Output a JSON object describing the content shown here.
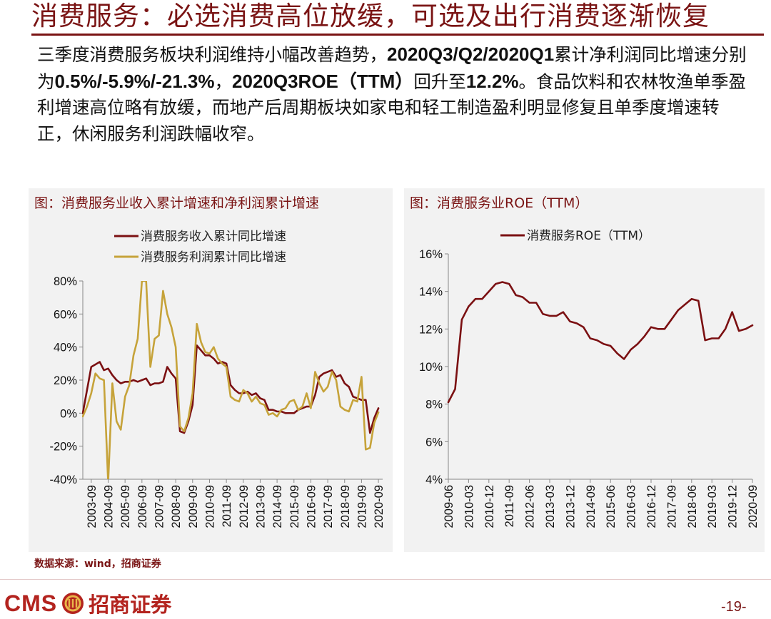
{
  "slide": {
    "title": "消费服务：必选消费高位放缓，可选及出行消费逐渐恢复",
    "body": [
      {
        "t": "三季度消费服务板块利润维持小幅改善趋势，",
        "b": false
      },
      {
        "t": "2020Q3/Q2/2020Q1",
        "b": true
      },
      {
        "t": "累计净利润同比增速分别为",
        "b": false
      },
      {
        "t": "0.5%/-5.9%/-21.3%",
        "b": true
      },
      {
        "t": "，",
        "b": false
      },
      {
        "t": "2020Q3ROE（TTM）",
        "b": true
      },
      {
        "t": "回升至",
        "b": false
      },
      {
        "t": "12.2%",
        "b": true
      },
      {
        "t": "。食品饮料和农林牧渔单季盈利增速高位略有放缓，而地产后周期板块如家电和轻工制造盈利明显修复且单季度增速转正，休闲服务利润跌幅收窄。",
        "b": false
      }
    ],
    "source": "数据来源：wind，招商证券",
    "logo_text": "CMS",
    "logo_cn": "招商证券",
    "page_number": "-19-"
  },
  "colors": {
    "brand": "#7a1414",
    "revenue": "#7b1012",
    "profit": "#c6a33a",
    "roe": "#7b1012",
    "panel_bg": "#f2f2f2"
  },
  "chart_data": [
    {
      "type": "line",
      "title": "图：消费服务业收入累计增速和净利润累计增速",
      "ylim": [
        -40,
        80
      ],
      "yticks": [
        "80%",
        "60%",
        "40%",
        "20%",
        "0%",
        "-20%",
        "-40%"
      ],
      "ytick_values": [
        80,
        60,
        40,
        20,
        0,
        -20,
        -40
      ],
      "xticks": [
        "2003-09",
        "2004-09",
        "2005-09",
        "2006-09",
        "2007-09",
        "2008-09",
        "2009-09",
        "2010-09",
        "2011-09",
        "2012-09",
        "2013-09",
        "2014-09",
        "2015-09",
        "2016-09",
        "2017-09",
        "2018-09",
        "2019-09",
        "2020-09"
      ],
      "grid": false,
      "legend_position": "top",
      "series": [
        {
          "name": "消费服务收入累计同比增速",
          "points": [
            [
              "2003-03",
              0
            ],
            [
              "2003-09",
              28
            ],
            [
              "2004-03",
              31
            ],
            [
              "2004-06",
              26
            ],
            [
              "2004-09",
              27
            ],
            [
              "2004-12",
              23
            ],
            [
              "2005-03",
              20
            ],
            [
              "2005-06",
              18
            ],
            [
              "2005-09",
              19
            ],
            [
              "2005-12",
              19
            ],
            [
              "2006-03",
              20
            ],
            [
              "2006-06",
              19
            ],
            [
              "2006-09",
              20
            ],
            [
              "2006-12",
              21
            ],
            [
              "2007-03",
              17
            ],
            [
              "2007-06",
              18
            ],
            [
              "2007-09",
              18
            ],
            [
              "2007-12",
              19
            ],
            [
              "2008-03",
              28
            ],
            [
              "2008-06",
              24
            ],
            [
              "2008-09",
              21
            ],
            [
              "2008-12",
              -11
            ],
            [
              "2009-03",
              -12
            ],
            [
              "2009-06",
              -5
            ],
            [
              "2009-09",
              5
            ],
            [
              "2009-12",
              41
            ],
            [
              "2010-03",
              38
            ],
            [
              "2010-06",
              35
            ],
            [
              "2010-09",
              35
            ],
            [
              "2010-12",
              33
            ],
            [
              "2011-03",
              30
            ],
            [
              "2011-06",
              31
            ],
            [
              "2011-09",
              30
            ],
            [
              "2011-12",
              17
            ],
            [
              "2012-03",
              14
            ],
            [
              "2012-06",
              12
            ],
            [
              "2012-09",
              12
            ],
            [
              "2012-12",
              13
            ],
            [
              "2013-03",
              11
            ],
            [
              "2013-06",
              12
            ],
            [
              "2013-09",
              9
            ],
            [
              "2013-12",
              8
            ],
            [
              "2014-03",
              2
            ],
            [
              "2014-06",
              2
            ],
            [
              "2014-09",
              1
            ],
            [
              "2014-12",
              1
            ],
            [
              "2015-03",
              0
            ],
            [
              "2015-06",
              0
            ],
            [
              "2015-09",
              0
            ],
            [
              "2015-12",
              2
            ],
            [
              "2016-03",
              3
            ],
            [
              "2016-06",
              4
            ],
            [
              "2016-09",
              4
            ],
            [
              "2016-12",
              11
            ],
            [
              "2017-03",
              22
            ],
            [
              "2017-06",
              24
            ],
            [
              "2017-09",
              25
            ],
            [
              "2017-12",
              26
            ],
            [
              "2018-03",
              22
            ],
            [
              "2018-06",
              23
            ],
            [
              "2018-09",
              18
            ],
            [
              "2018-12",
              16
            ],
            [
              "2019-03",
              10
            ],
            [
              "2019-06",
              9
            ],
            [
              "2019-09",
              8
            ],
            [
              "2019-12",
              8
            ],
            [
              "2020-03",
              -12
            ],
            [
              "2020-06",
              -3
            ],
            [
              "2020-09",
              3
            ]
          ]
        },
        {
          "name": "消费服务利润累计同比增速",
          "points": [
            [
              "2003-03",
              -2
            ],
            [
              "2003-06",
              4
            ],
            [
              "2003-09",
              12
            ],
            [
              "2003-12",
              24
            ],
            [
              "2004-03",
              21
            ],
            [
              "2004-06",
              20
            ],
            [
              "2004-09",
              -42
            ],
            [
              "2004-12",
              18
            ],
            [
              "2005-03",
              -5
            ],
            [
              "2005-06",
              -10
            ],
            [
              "2005-09",
              10
            ],
            [
              "2005-12",
              17
            ],
            [
              "2006-03",
              35
            ],
            [
              "2006-06",
              45
            ],
            [
              "2006-09",
              80
            ],
            [
              "2006-12",
              80
            ],
            [
              "2007-03",
              28
            ],
            [
              "2007-06",
              45
            ],
            [
              "2007-09",
              47
            ],
            [
              "2007-12",
              74
            ],
            [
              "2008-03",
              60
            ],
            [
              "2008-06",
              52
            ],
            [
              "2008-09",
              40
            ],
            [
              "2008-12",
              -8
            ],
            [
              "2009-03",
              -11
            ],
            [
              "2009-06",
              -3
            ],
            [
              "2009-09",
              12
            ],
            [
              "2009-12",
              54
            ],
            [
              "2010-03",
              43
            ],
            [
              "2010-06",
              37
            ],
            [
              "2010-09",
              36
            ],
            [
              "2010-12",
              40
            ],
            [
              "2011-03",
              33
            ],
            [
              "2011-06",
              30
            ],
            [
              "2011-09",
              28
            ],
            [
              "2011-12",
              10
            ],
            [
              "2012-03",
              8
            ],
            [
              "2012-06",
              7
            ],
            [
              "2012-09",
              14
            ],
            [
              "2012-12",
              12
            ],
            [
              "2013-03",
              7
            ],
            [
              "2013-06",
              10
            ],
            [
              "2013-09",
              6
            ],
            [
              "2013-12",
              5
            ],
            [
              "2014-03",
              -1
            ],
            [
              "2014-06",
              0
            ],
            [
              "2014-09",
              -2
            ],
            [
              "2014-12",
              2
            ],
            [
              "2015-03",
              3
            ],
            [
              "2015-06",
              7
            ],
            [
              "2015-09",
              8
            ],
            [
              "2015-12",
              2
            ],
            [
              "2016-03",
              4
            ],
            [
              "2016-06",
              12
            ],
            [
              "2016-09",
              3
            ],
            [
              "2016-12",
              25
            ],
            [
              "2017-03",
              18
            ],
            [
              "2017-06",
              13
            ],
            [
              "2017-09",
              16
            ],
            [
              "2017-12",
              25
            ],
            [
              "2018-03",
              20
            ],
            [
              "2018-06",
              4
            ],
            [
              "2018-09",
              2
            ],
            [
              "2018-12",
              1
            ],
            [
              "2019-03",
              8
            ],
            [
              "2019-06",
              7
            ],
            [
              "2019-09",
              22
            ],
            [
              "2019-12",
              -22
            ],
            [
              "2020-03",
              -21
            ],
            [
              "2020-06",
              -6
            ],
            [
              "2020-09",
              0.5
            ]
          ]
        }
      ]
    },
    {
      "type": "line",
      "title": "图：消费服务业ROE（TTM）",
      "ylim": [
        4,
        16
      ],
      "yticks": [
        "16%",
        "14%",
        "12%",
        "10%",
        "8%",
        "6%",
        "4%"
      ],
      "ytick_values": [
        16,
        14,
        12,
        10,
        8,
        6,
        4
      ],
      "xticks": [
        "2009-06",
        "2010-03",
        "2010-12",
        "2011-09",
        "2012-06",
        "2013-03",
        "2013-12",
        "2014-09",
        "2015-06",
        "2016-03",
        "2016-12",
        "2017-09",
        "2018-06",
        "2019-03",
        "2019-12",
        "2020-09"
      ],
      "grid": false,
      "legend_position": "top",
      "series": [
        {
          "name": "消费服务ROE（TTM）",
          "points": [
            [
              "2009-06",
              8.1
            ],
            [
              "2009-09",
              8.8
            ],
            [
              "2009-12",
              12.5
            ],
            [
              "2010-03",
              13.2
            ],
            [
              "2010-06",
              13.6
            ],
            [
              "2010-09",
              13.6
            ],
            [
              "2010-12",
              14.0
            ],
            [
              "2011-03",
              14.4
            ],
            [
              "2011-06",
              14.5
            ],
            [
              "2011-09",
              14.4
            ],
            [
              "2011-12",
              13.8
            ],
            [
              "2012-03",
              13.7
            ],
            [
              "2012-06",
              13.4
            ],
            [
              "2012-09",
              13.4
            ],
            [
              "2012-12",
              12.8
            ],
            [
              "2013-03",
              12.7
            ],
            [
              "2013-06",
              12.7
            ],
            [
              "2013-09",
              12.9
            ],
            [
              "2013-12",
              12.4
            ],
            [
              "2014-03",
              12.3
            ],
            [
              "2014-06",
              12.1
            ],
            [
              "2014-09",
              11.5
            ],
            [
              "2014-12",
              11.4
            ],
            [
              "2015-03",
              11.2
            ],
            [
              "2015-06",
              11.1
            ],
            [
              "2015-09",
              10.7
            ],
            [
              "2015-12",
              10.4
            ],
            [
              "2016-03",
              10.9
            ],
            [
              "2016-06",
              11.2
            ],
            [
              "2016-09",
              11.6
            ],
            [
              "2016-12",
              12.1
            ],
            [
              "2017-03",
              12.0
            ],
            [
              "2017-06",
              12.0
            ],
            [
              "2017-09",
              12.5
            ],
            [
              "2017-12",
              13.0
            ],
            [
              "2018-03",
              13.3
            ],
            [
              "2018-06",
              13.6
            ],
            [
              "2018-09",
              13.5
            ],
            [
              "2018-12",
              11.4
            ],
            [
              "2019-03",
              11.5
            ],
            [
              "2019-06",
              11.5
            ],
            [
              "2019-09",
              12.0
            ],
            [
              "2019-12",
              12.9
            ],
            [
              "2020-03",
              11.9
            ],
            [
              "2020-06",
              12.0
            ],
            [
              "2020-09",
              12.2
            ]
          ]
        }
      ]
    }
  ]
}
